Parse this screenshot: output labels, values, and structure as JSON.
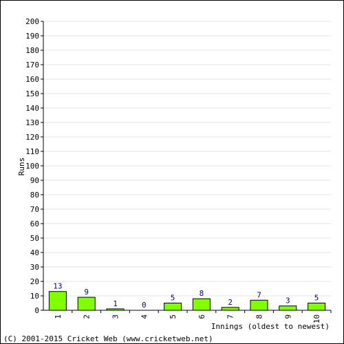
{
  "chart_data": {
    "type": "bar",
    "categories": [
      "1",
      "2",
      "3",
      "4",
      "5",
      "6",
      "7",
      "8",
      "9",
      "10"
    ],
    "values": [
      13,
      9,
      1,
      0,
      5,
      8,
      2,
      7,
      3,
      5
    ],
    "xlabel": "Innings (oldest to newest)",
    "ylabel": "Runs",
    "ylim": [
      0,
      200
    ],
    "yticks": [
      0,
      10,
      20,
      30,
      40,
      50,
      60,
      70,
      80,
      90,
      100,
      110,
      120,
      130,
      140,
      150,
      160,
      170,
      180,
      190,
      200
    ],
    "grid": true,
    "bar_color": "#80ff00",
    "label_color": "#000080"
  },
  "footer": "(C) 2001-2015 Cricket Web (www.cricketweb.net)"
}
